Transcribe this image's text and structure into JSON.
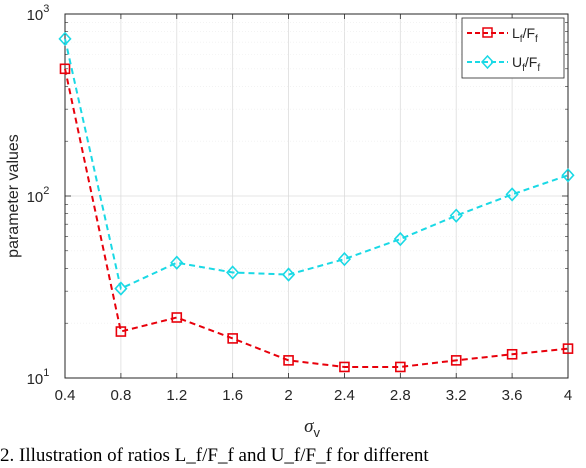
{
  "chart_data": {
    "type": "line",
    "x": [
      0.4,
      0.8,
      1.2,
      1.6,
      2,
      2.4,
      2.8,
      3.2,
      3.6,
      4
    ],
    "x_ticks": [
      "0.4",
      "0.8",
      "1.2",
      "1.6",
      "2",
      "2.4",
      "2.8",
      "3.2",
      "3.6",
      "4"
    ],
    "xlim": [
      0.4,
      4
    ],
    "ylim": [
      10,
      1000
    ],
    "yscale": "log",
    "y_ticks": [
      {
        "base": "10",
        "exp": "1",
        "value": 10
      },
      {
        "base": "10",
        "exp": "2",
        "value": 100
      },
      {
        "base": "10",
        "exp": "3",
        "value": 1000
      }
    ],
    "xlabel": {
      "symbol": "σ",
      "sub": "v"
    },
    "ylabel": "parameter values",
    "grid": true,
    "legend_position": "top-right",
    "series": [
      {
        "name": {
          "a": "L",
          "a_sub": "f",
          "sep": "/F",
          "b_sub": "f"
        },
        "color": "#e8000b",
        "marker": "square",
        "values": [
          500,
          18,
          21.5,
          16.5,
          12.5,
          11.5,
          11.5,
          12.5,
          13.5,
          14.5
        ]
      },
      {
        "name": {
          "a": "U",
          "a_sub": "f",
          "sep": "/F",
          "b_sub": "f"
        },
        "color": "#1ad9e5",
        "marker": "diamond",
        "values": [
          730,
          31,
          43,
          38,
          37,
          45,
          58,
          78,
          102,
          130
        ]
      }
    ]
  },
  "caption": "2. Illustration of ratios L_f/F_f and U_f/F_f for different"
}
